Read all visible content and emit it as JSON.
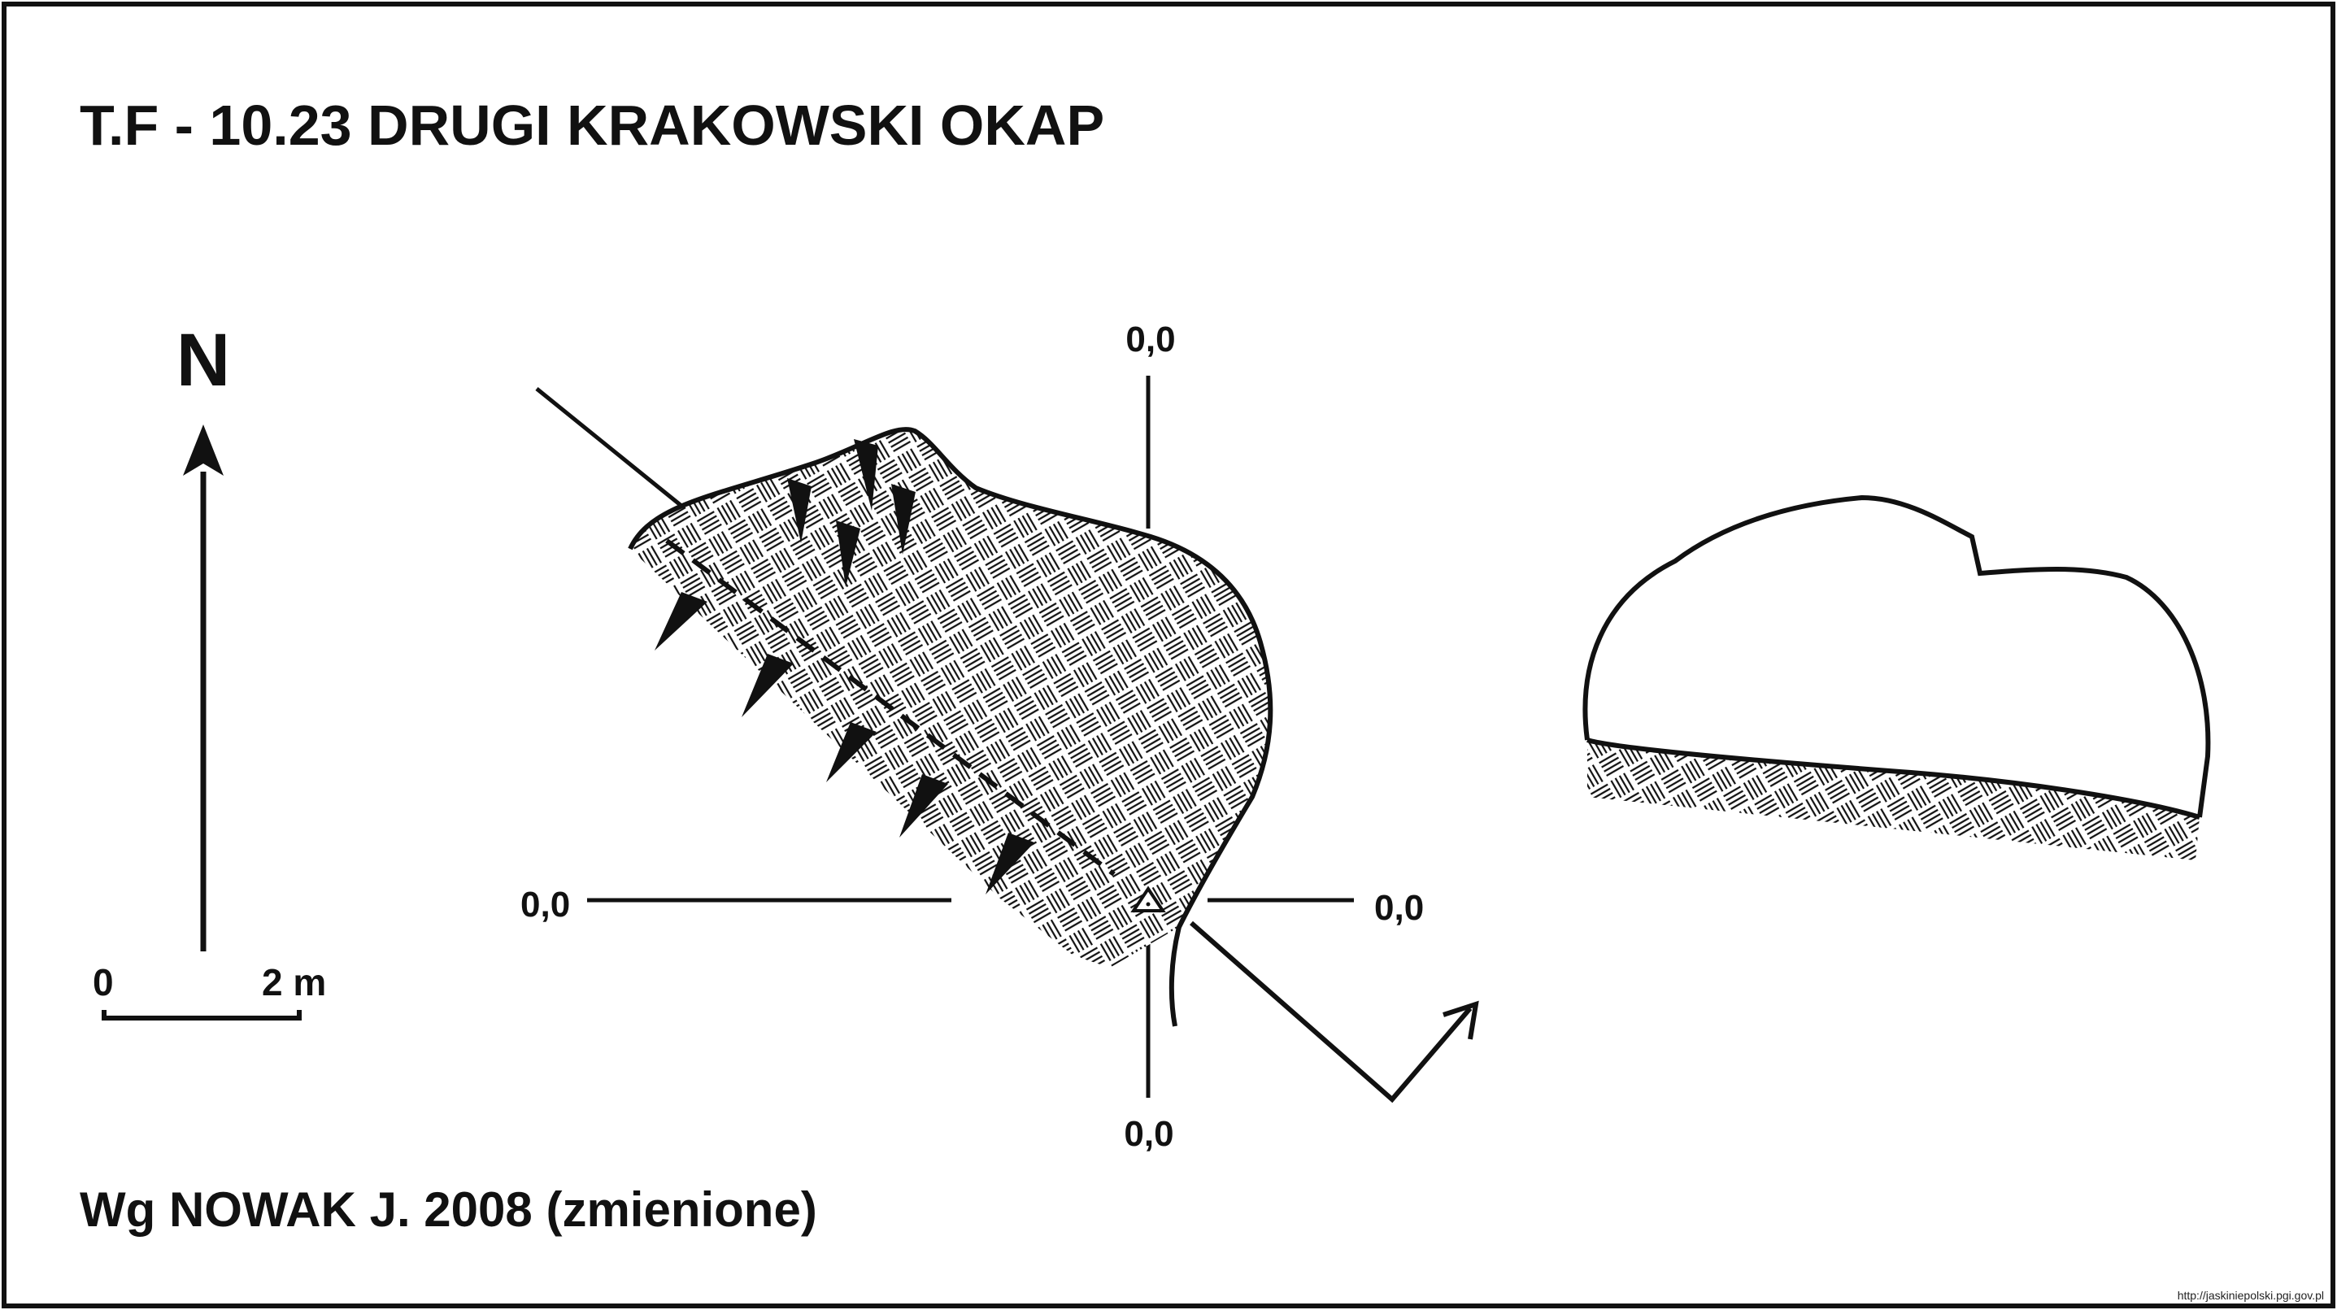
{
  "title": "T.F - 10.23  DRUGI KRAKOWSKI OKAP",
  "north_label": "N",
  "scale": {
    "start_label": "0",
    "end_label": "2 m"
  },
  "section_labels": {
    "top": "0,0",
    "left": "0,0",
    "right": "0,0",
    "bottom": "0,0"
  },
  "credit": "Wg  NOWAK J. 2008 (zmienione)",
  "source_url": "http://jaskiniepolski.pgi.gov.pl",
  "colors": {
    "ink": "#111111",
    "background": "#ffffff"
  }
}
